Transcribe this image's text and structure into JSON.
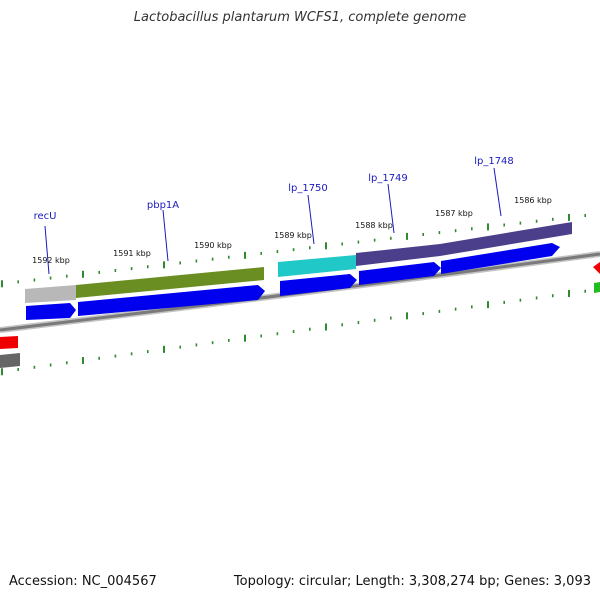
{
  "title": "Lactobacillus plantarum WCFS1, complete genome",
  "footer": {
    "accession": "Accession: NC_004567",
    "summary": "Topology: circular; Length: 3,308,274 bp; Genes: 3,093"
  },
  "colors": {
    "background": "#ffffff",
    "backbone": "#8a8a8a",
    "tick": "#2e8b2e",
    "cds_arrow": "#0000ee",
    "gene_label": "#1a1abf",
    "feature_recU": "#b8b8b8",
    "feature_pbp1A": "#6b8e23",
    "feature_lp_1750": "#20c8c8",
    "feature_lp_1749": "#4b3f8c",
    "feature_lp_1748": "#4b3f8c",
    "edge_red": "#ee0000",
    "edge_green": "#22bb22",
    "edge_gray": "#666666"
  },
  "position_labels": [
    "1592 kbp",
    "1591 kbp",
    "1590 kbp",
    "1589 kbp",
    "1588 kbp",
    "1587 kbp",
    "1586 kbp"
  ],
  "genes": [
    {
      "name": "recU",
      "color": "#b8b8b8"
    },
    {
      "name": "pbp1A",
      "color": "#6b8e23"
    },
    {
      "name": "lp_1750",
      "color": "#20c8c8"
    },
    {
      "name": "lp_1749",
      "color": "#4b3f8c"
    },
    {
      "name": "lp_1748",
      "color": "#4b3f8c"
    }
  ]
}
